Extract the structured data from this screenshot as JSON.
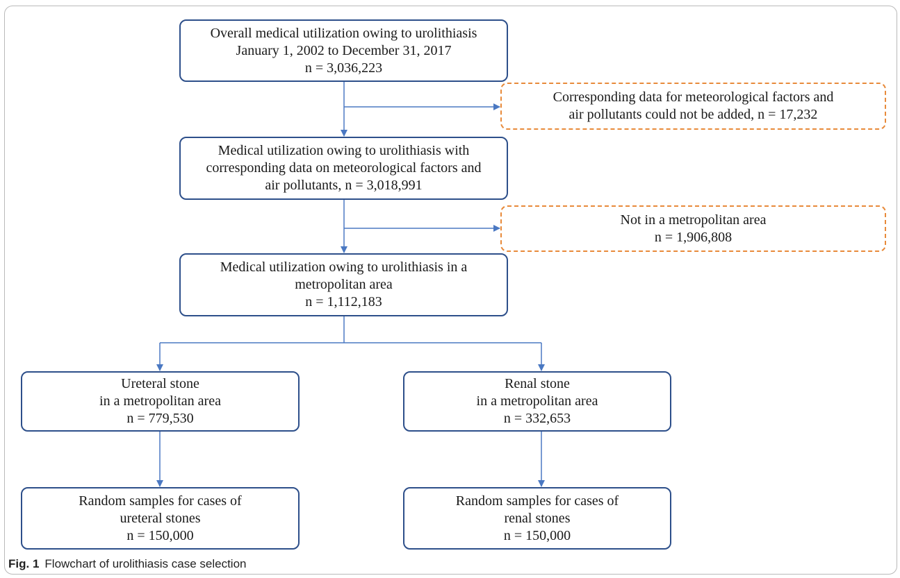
{
  "flowchart": {
    "boxes": {
      "overall": {
        "line1": "Overall medical utilization owing to urolithiasis",
        "line2": "January 1, 2002 to December 31, 2017",
        "line3": "n = 3,036,223"
      },
      "excluded_missing": {
        "line1": "Corresponding data for meteorological factors and",
        "line2": "air pollutants could not be added, n = 17,232"
      },
      "with_data": {
        "line1": "Medical utilization owing to urolithiasis with",
        "line2": "corresponding data on meteorological factors and",
        "line3": "air pollutants, n = 3,018,991"
      },
      "excluded_nonmetro": {
        "line1": "Not in a metropolitan area",
        "line2": "n = 1,906,808"
      },
      "metro": {
        "line1": "Medical utilization owing to urolithiasis in a",
        "line2": "metropolitan area",
        "line3": "n = 1,112,183"
      },
      "ureteral": {
        "line1": "Ureteral stone",
        "line2": "in a metropolitan area",
        "line3": "n = 779,530"
      },
      "renal": {
        "line1": "Renal stone",
        "line2": "in a metropolitan area",
        "line3": "n = 332,653"
      },
      "ureteral_sample": {
        "line1": "Random samples for cases of",
        "line2": "ureteral stones",
        "line3": "n = 150,000"
      },
      "renal_sample": {
        "line1": "Random samples for cases of",
        "line2": "renal stones",
        "line3": "n = 150,000"
      }
    },
    "colors": {
      "box_border": "#2d4f8a",
      "excluded_border": "#e88a3a",
      "arrow": "#4a78c2"
    }
  },
  "caption": {
    "label": "Fig. 1",
    "text": "Flowchart of urolithiasis case selection"
  }
}
